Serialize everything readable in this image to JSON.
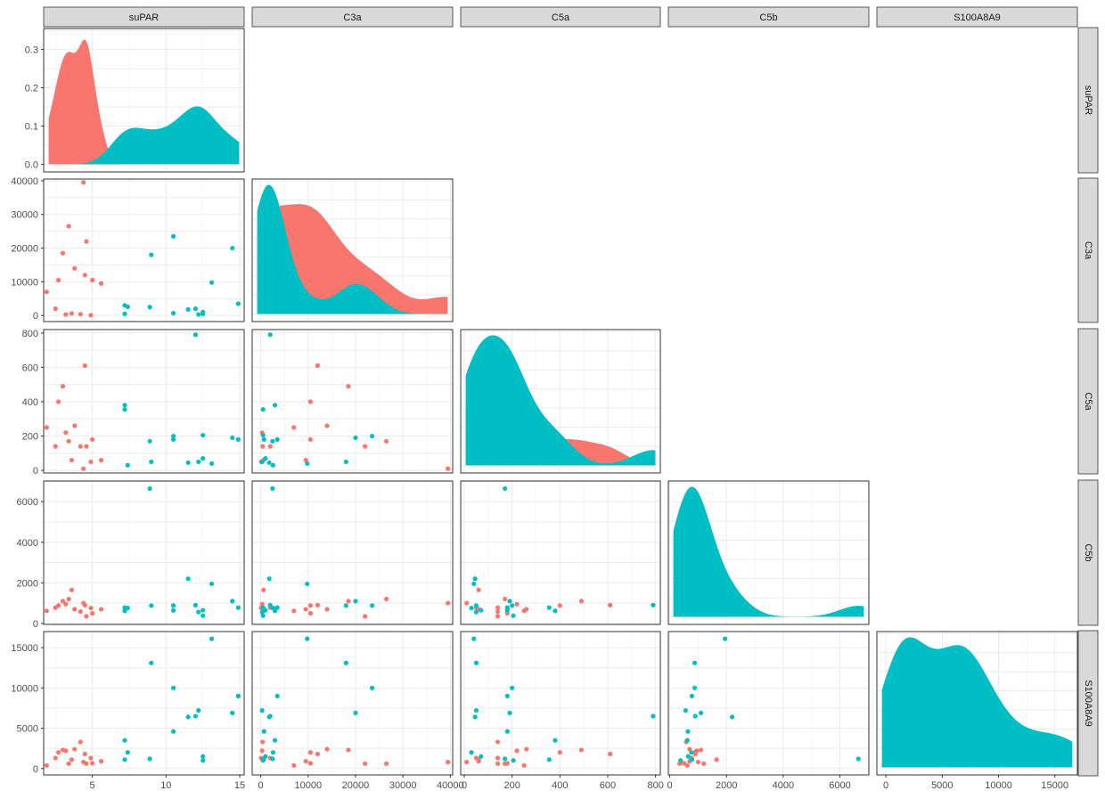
{
  "chart_data": {
    "type": "scatter",
    "title": "",
    "variables": [
      "suPAR",
      "C3a",
      "C5a",
      "C5b",
      "S100A8A9"
    ],
    "colors": {
      "group_a": "#F8766D",
      "group_b": "#00BFC4"
    },
    "grid": true,
    "legend": "none",
    "axis_ranges": {
      "suPAR": [
        1.7,
        15.3
      ],
      "C3a": [
        -1800,
        40500
      ],
      "C5a": [
        -15,
        820
      ],
      "C5b": [
        -50,
        7020
      ],
      "S100A8A9": [
        -800,
        17000
      ]
    },
    "y_ranges": {
      "C3a": [
        -1800,
        40500
      ],
      "C5a": [
        -15,
        820
      ],
      "C5b": [
        -50,
        7020
      ],
      "S100A8A9": [
        -800,
        17000
      ]
    },
    "density_ylim": [
      -0.02,
      0.355
    ],
    "ticks": {
      "suPAR": [
        "5",
        "10",
        "15"
      ],
      "C3a": [
        "0",
        "10000",
        "20000",
        "30000",
        "40000"
      ],
      "C5a": [
        "0",
        "200",
        "400",
        "600",
        "800"
      ],
      "C5b": [
        "0",
        "2000",
        "4000",
        "6000"
      ],
      "S100A8A9": [
        "0",
        "5000",
        "10000",
        "15000"
      ],
      "density": [
        "0.0",
        "0.1",
        "0.2",
        "0.3"
      ]
    },
    "tick_values": {
      "suPAR": [
        5,
        10,
        15
      ],
      "C3a": [
        0,
        10000,
        20000,
        30000,
        40000
      ],
      "C5a": [
        0,
        200,
        400,
        600,
        800
      ],
      "C5b": [
        0,
        2000,
        4000,
        6000
      ],
      "S100A8A9": [
        0,
        5000,
        10000,
        15000
      ],
      "density": [
        0,
        0.1,
        0.2,
        0.3
      ]
    },
    "points": {
      "group_a": [
        [
          1.9,
          7000,
          250,
          620,
          380
        ],
        [
          2.5,
          2000,
          140,
          780,
          1300
        ],
        [
          2.7,
          10500,
          400,
          880,
          2000
        ],
        [
          3.0,
          18500,
          490,
          1100,
          2300
        ],
        [
          3.2,
          300,
          220,
          950,
          2200
        ],
        [
          3.4,
          26500,
          170,
          1200,
          600
        ],
        [
          3.6,
          600,
          60,
          1650,
          1100
        ],
        [
          3.8,
          14000,
          260,
          700,
          2400
        ],
        [
          4.2,
          400,
          140,
          580,
          3300
        ],
        [
          4.4,
          39500,
          10,
          1000,
          800
        ],
        [
          4.5,
          12000,
          610,
          900,
          1800
        ],
        [
          4.6,
          22000,
          140,
          350,
          600
        ],
        [
          4.9,
          100,
          50,
          760,
          1300
        ],
        [
          5.0,
          10500,
          180,
          500,
          650
        ],
        [
          5.6,
          9500,
          60,
          700,
          900
        ]
      ],
      "group_b": [
        [
          7.2,
          3000,
          380,
          620,
          3500
        ],
        [
          7.2,
          500,
          355,
          780,
          1100
        ],
        [
          7.4,
          2600,
          30,
          760,
          2000
        ],
        [
          8.9,
          2500,
          170,
          6650,
          1200
        ],
        [
          9.0,
          18000,
          50,
          880,
          13100
        ],
        [
          10.5,
          23500,
          200,
          880,
          10000
        ],
        [
          10.5,
          700,
          180,
          640,
          4600
        ],
        [
          11.5,
          1800,
          45,
          2200,
          6400
        ],
        [
          12.0,
          2000,
          790,
          900,
          6500
        ],
        [
          12.2,
          300,
          50,
          560,
          7200
        ],
        [
          12.5,
          500,
          205,
          380,
          1000
        ],
        [
          12.5,
          1000,
          70,
          650,
          1500
        ],
        [
          13.1,
          9800,
          40,
          1950,
          16100
        ],
        [
          14.5,
          20000,
          190,
          1100,
          6900
        ],
        [
          14.9,
          3500,
          180,
          780,
          9000
        ]
      ]
    }
  },
  "panels": {
    "strip_top": [
      "suPAR",
      "C3a",
      "C5a",
      "C5b",
      "S100A8A9"
    ],
    "strip_right": [
      "suPAR",
      "C3a",
      "C5a",
      "C5b",
      "S100A8A9"
    ]
  }
}
